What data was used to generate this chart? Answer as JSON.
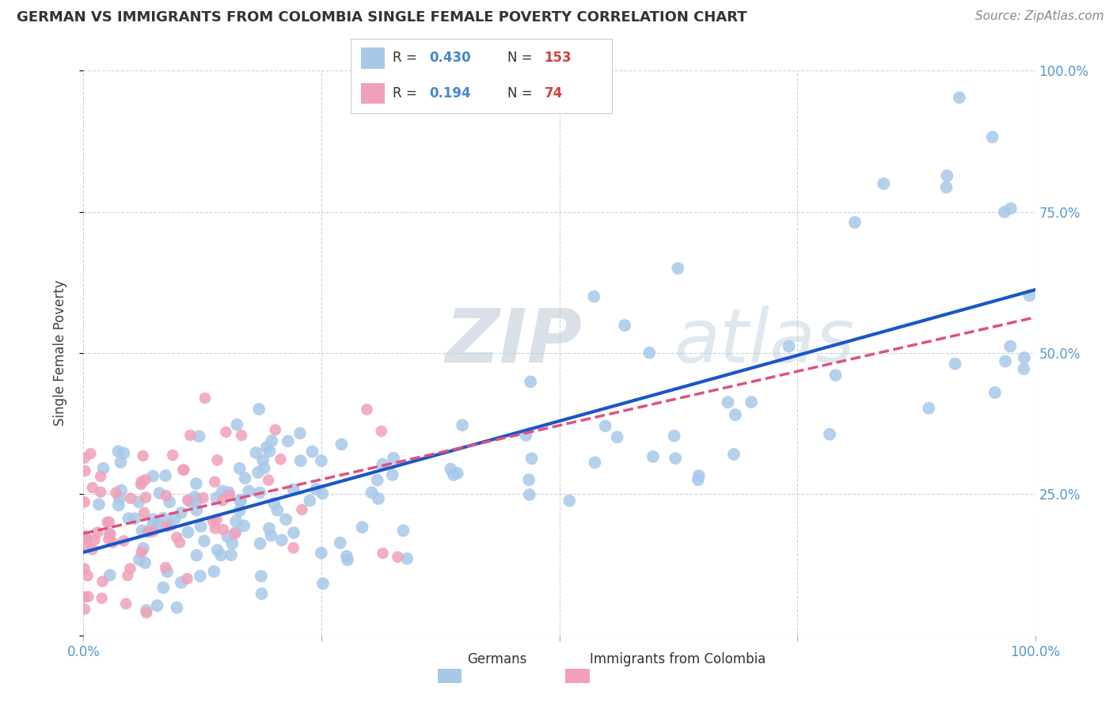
{
  "title": "GERMAN VS IMMIGRANTS FROM COLOMBIA SINGLE FEMALE POVERTY CORRELATION CHART",
  "source": "Source: ZipAtlas.com",
  "ylabel": "Single Female Poverty",
  "german_color": "#a8c8e8",
  "colombia_color": "#f0a0b8",
  "german_line_color": "#1a56c8",
  "colombia_line_color": "#e05080",
  "background_color": "#ffffff",
  "grid_color": "#c8d4e0",
  "title_color": "#333333",
  "tick_color": "#5599cc",
  "watermark_color": "#c8d8e8"
}
